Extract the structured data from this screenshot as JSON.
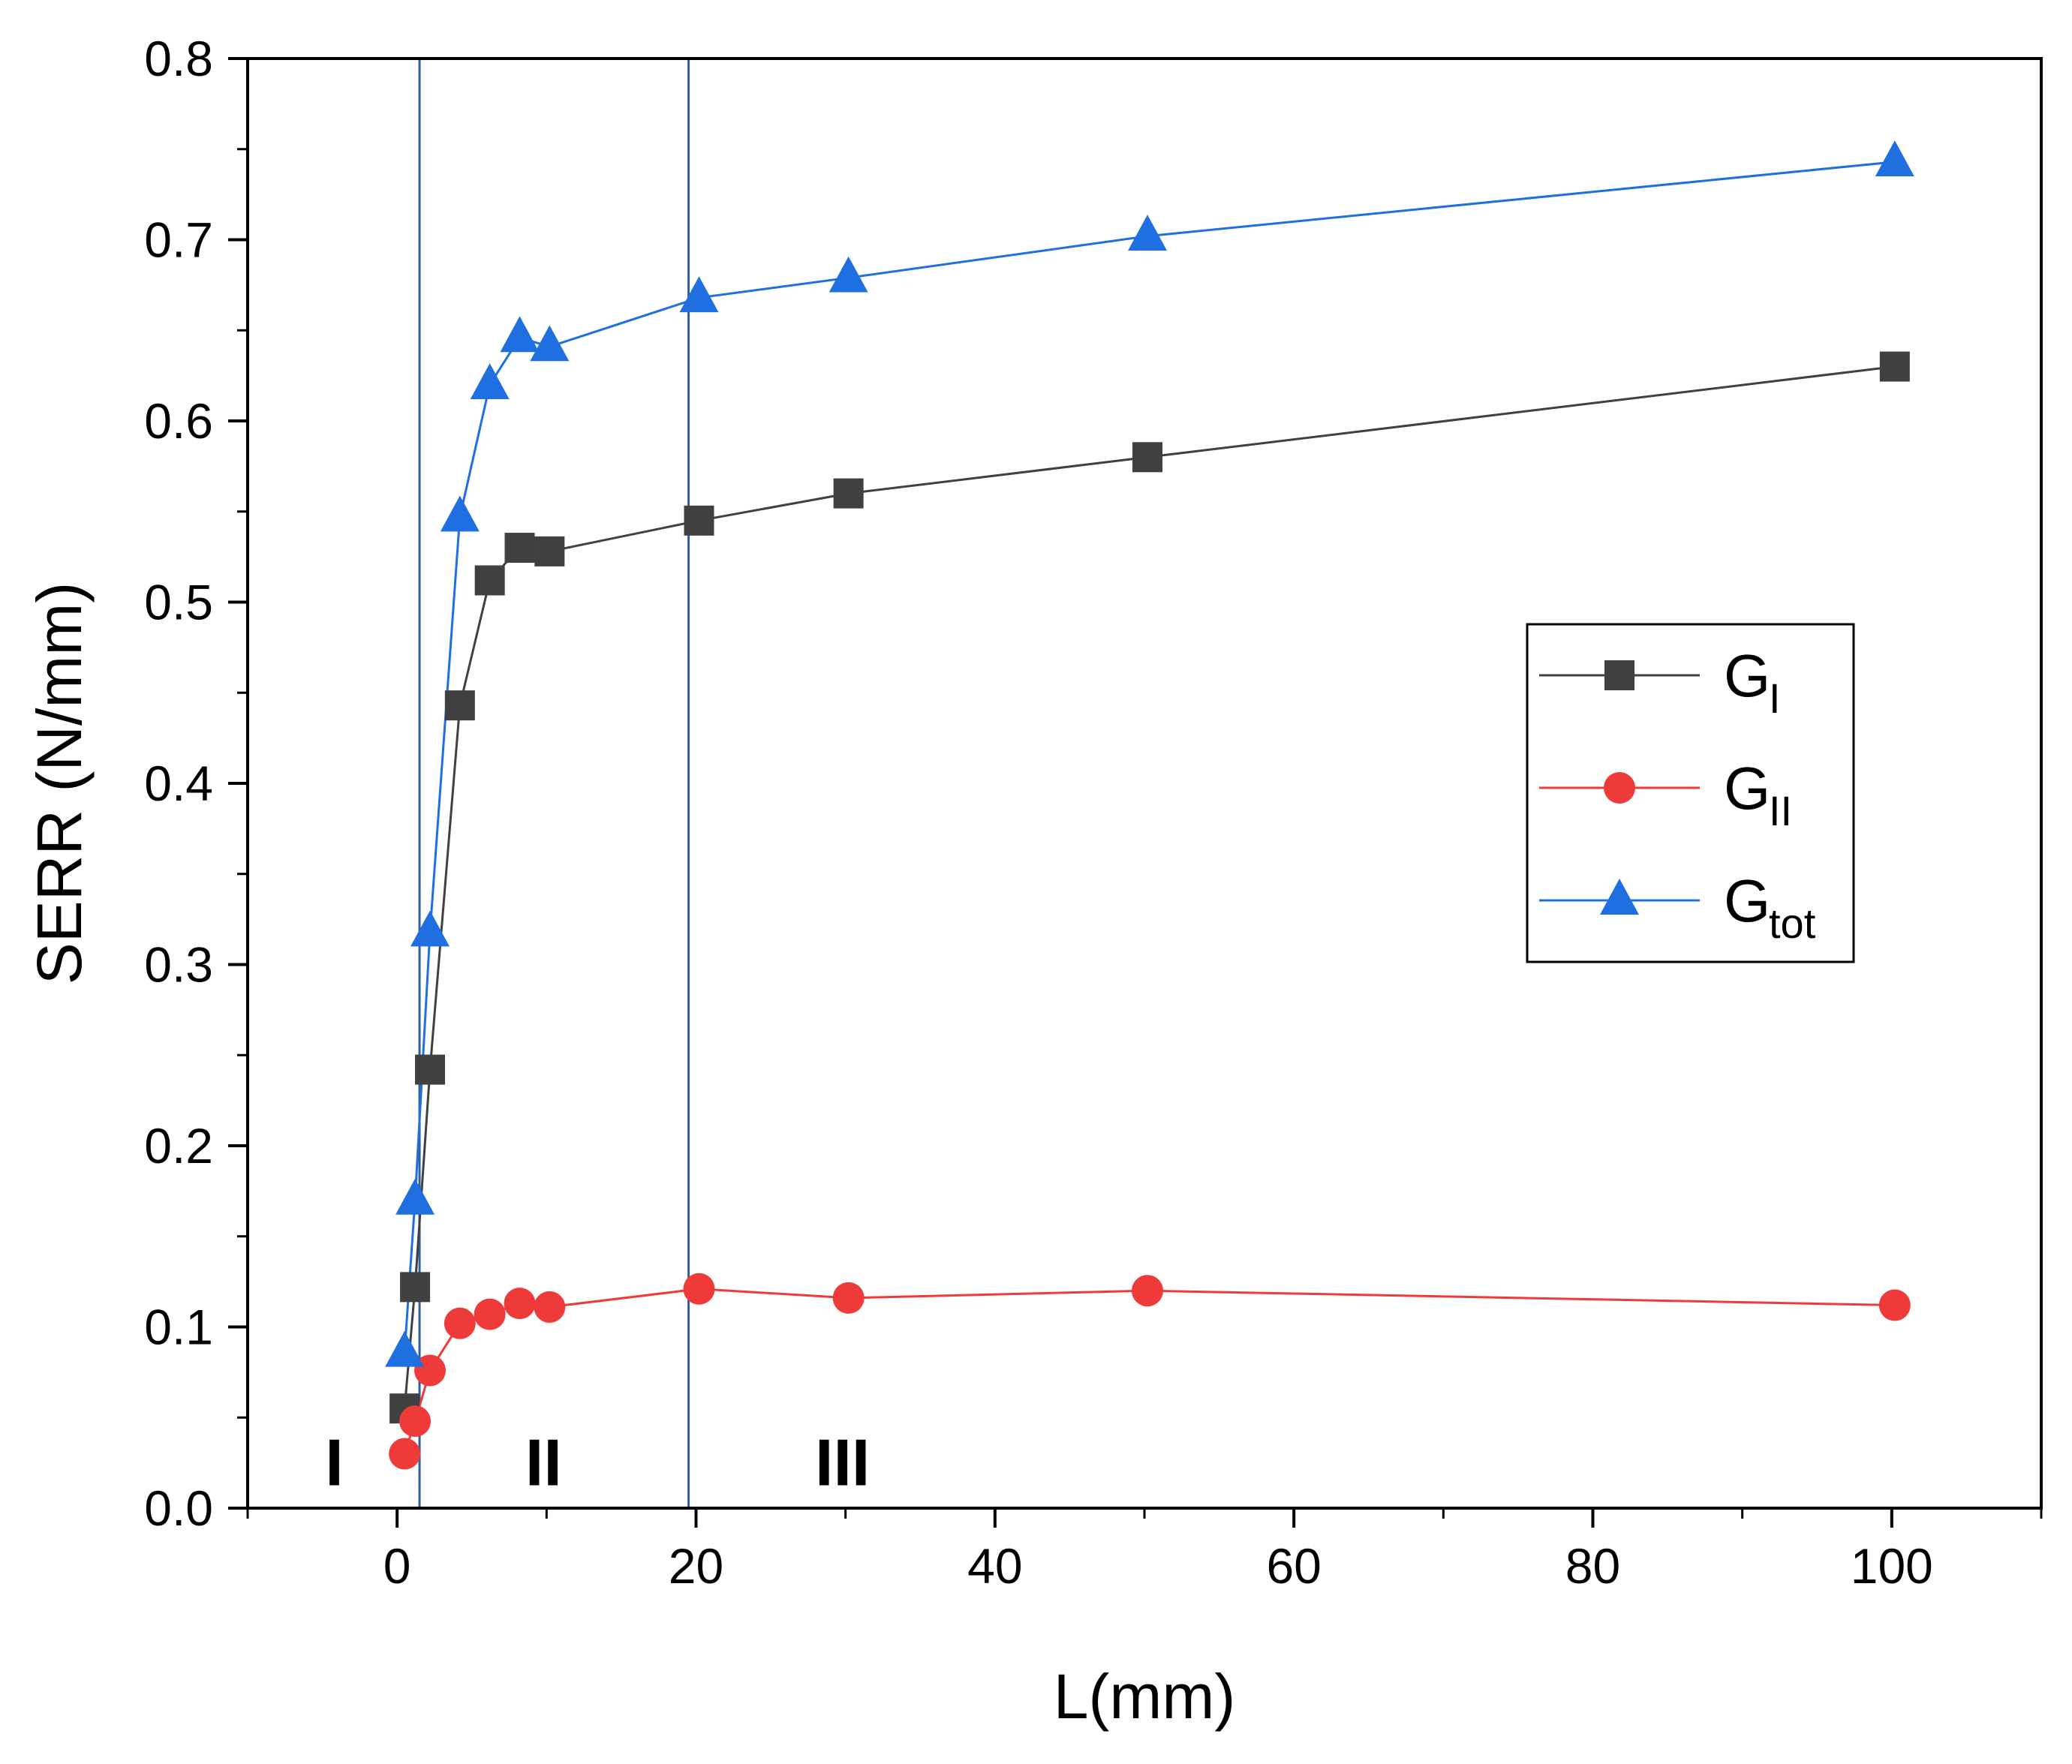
{
  "chart_data": {
    "type": "line",
    "title": "",
    "xlabel": "L(mm)",
    "ylabel": "SERR (N/mm)",
    "xlim": [
      -10,
      110
    ],
    "ylim": [
      0.0,
      0.8
    ],
    "x_ticks": [
      0,
      20,
      40,
      60,
      80,
      100
    ],
    "y_ticks": [
      0.0,
      0.1,
      0.2,
      0.3,
      0.4,
      0.5,
      0.6,
      0.7,
      0.8
    ],
    "x_tick_labels": [
      "0",
      "20",
      "40",
      "60",
      "80",
      "100"
    ],
    "y_tick_labels": [
      "0.0",
      "0.1",
      "0.2",
      "0.3",
      "0.4",
      "0.5",
      "0.6",
      "0.7",
      "0.8"
    ],
    "grid": false,
    "legend_position": "right-middle",
    "highlight_region": {
      "x_range": [
        1.5,
        19.5
      ],
      "y_range": [
        0.0,
        0.8
      ],
      "color": "#2f5f9e"
    },
    "region_labels": [
      {
        "text": "I",
        "x": -4.2,
        "y": 0.025
      },
      {
        "text": "II",
        "x": 9.8,
        "y": 0.025
      },
      {
        "text": "III",
        "x": 29.8,
        "y": 0.025
      }
    ],
    "series": [
      {
        "name": "GI",
        "legend_main": "G",
        "legend_sub": "I",
        "color": "#404040",
        "marker": "square",
        "x": [
          0.5,
          1.2,
          2.2,
          4.2,
          6.2,
          8.2,
          10.2,
          20.2,
          30.2,
          50.2,
          100.2
        ],
        "values": [
          0.055,
          0.122,
          0.242,
          0.443,
          0.512,
          0.53,
          0.528,
          0.545,
          0.56,
          0.58,
          0.63
        ]
      },
      {
        "name": "GII",
        "legend_main": "G",
        "legend_sub": "II",
        "color": "#ef3a3a",
        "marker": "circle",
        "x": [
          0.5,
          1.2,
          2.2,
          4.2,
          6.2,
          8.2,
          10.2,
          20.2,
          30.2,
          50.2,
          100.2
        ],
        "values": [
          0.03,
          0.048,
          0.076,
          0.102,
          0.107,
          0.113,
          0.111,
          0.121,
          0.116,
          0.12,
          0.112
        ]
      },
      {
        "name": "Gtot",
        "legend_main": "G",
        "legend_sub": "tot",
        "color": "#1f6fe0",
        "marker": "triangle",
        "x": [
          0.5,
          1.2,
          2.2,
          4.2,
          6.2,
          8.2,
          10.2,
          20.2,
          30.2,
          50.2,
          100.2
        ],
        "values": [
          0.086,
          0.17,
          0.318,
          0.547,
          0.62,
          0.646,
          0.641,
          0.668,
          0.679,
          0.702,
          0.743
        ]
      }
    ]
  }
}
